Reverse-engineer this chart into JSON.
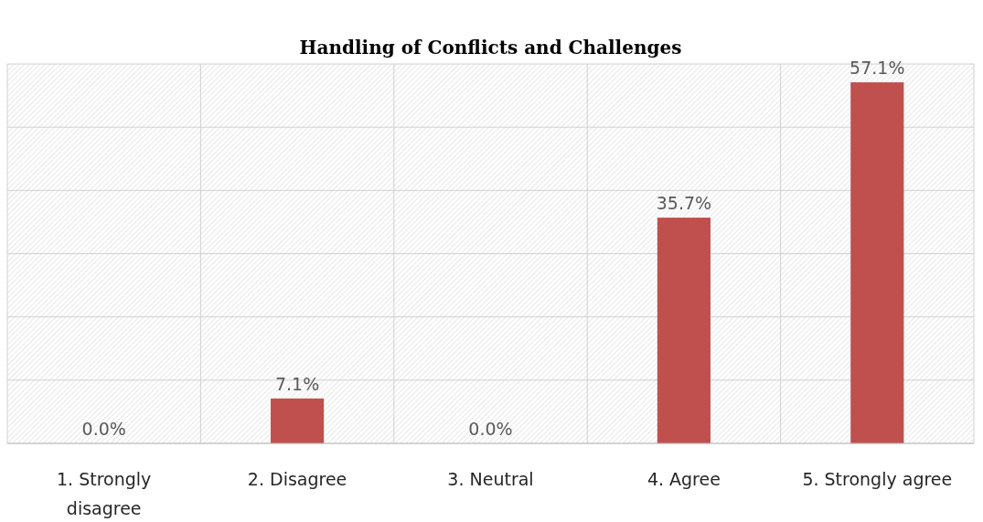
{
  "chart_data": {
    "type": "bar",
    "title": "Handling of Conflicts and Challenges",
    "categories": [
      "1. Strongly disagree",
      "2. Disagree",
      "3. Neutral",
      "4. Agree",
      "5. Strongly agree"
    ],
    "values": [
      0,
      7.1,
      0,
      35.7,
      57.1
    ],
    "value_labels": [
      "0.0%",
      "7.1%",
      "0.0%",
      "35.7%",
      "57.1%"
    ],
    "color": "#c0504d",
    "ylim": [
      0,
      60
    ],
    "yticks": [
      {
        "value": 0,
        "label": null
      },
      {
        "value": 10,
        "label": null
      },
      {
        "value": 20,
        "label": null
      },
      {
        "value": 30,
        "label": null
      },
      {
        "value": 40,
        "label": null
      },
      {
        "value": 50,
        "label": null
      },
      {
        "value": 60,
        "label": null
      }
    ],
    "tick_labels": "x",
    "grid": true
  }
}
